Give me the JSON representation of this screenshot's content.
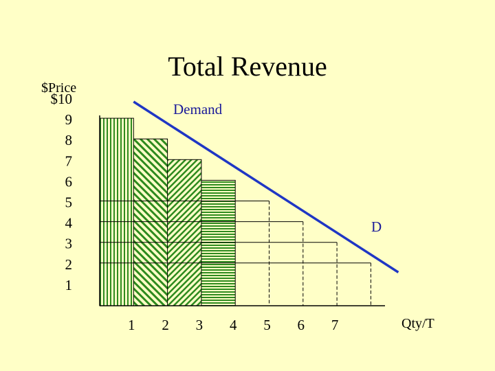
{
  "chart_data": {
    "type": "line",
    "title": "Total Revenue",
    "ylabel": "$Price",
    "xlabel": "Qty/T",
    "y_ticks": [
      "$10",
      "9",
      "8",
      "7",
      "6",
      "5",
      "4",
      "3",
      "2",
      "1"
    ],
    "x_ticks": [
      "1",
      "2",
      "3",
      "4",
      "5",
      "6",
      "7"
    ],
    "series": [
      {
        "name": "Demand",
        "line_label": "D",
        "x": [
          1,
          8
        ],
        "y": [
          9.8,
          1.5
        ]
      }
    ],
    "revenue_blocks": [
      {
        "quantity": 4,
        "price": 6,
        "pattern": "horizontal"
      },
      {
        "quantity": 3,
        "price": 7,
        "pattern": "diagonal-fine"
      },
      {
        "quantity": 2,
        "price": 8,
        "pattern": "diagonal-coarse"
      },
      {
        "quantity": 1,
        "price": 9,
        "pattern": "vertical"
      }
    ],
    "reference_points": [
      {
        "quantity": 5,
        "price": 5
      },
      {
        "quantity": 6,
        "price": 4
      },
      {
        "quantity": 7,
        "price": 3
      },
      {
        "quantity": 8,
        "price": 2
      }
    ],
    "xlim": [
      0,
      8.5
    ],
    "ylim": [
      0,
      10
    ],
    "colors": {
      "demand": "#1f36c4",
      "fill": "#2d8a1e",
      "background": "#ffffc7"
    }
  }
}
